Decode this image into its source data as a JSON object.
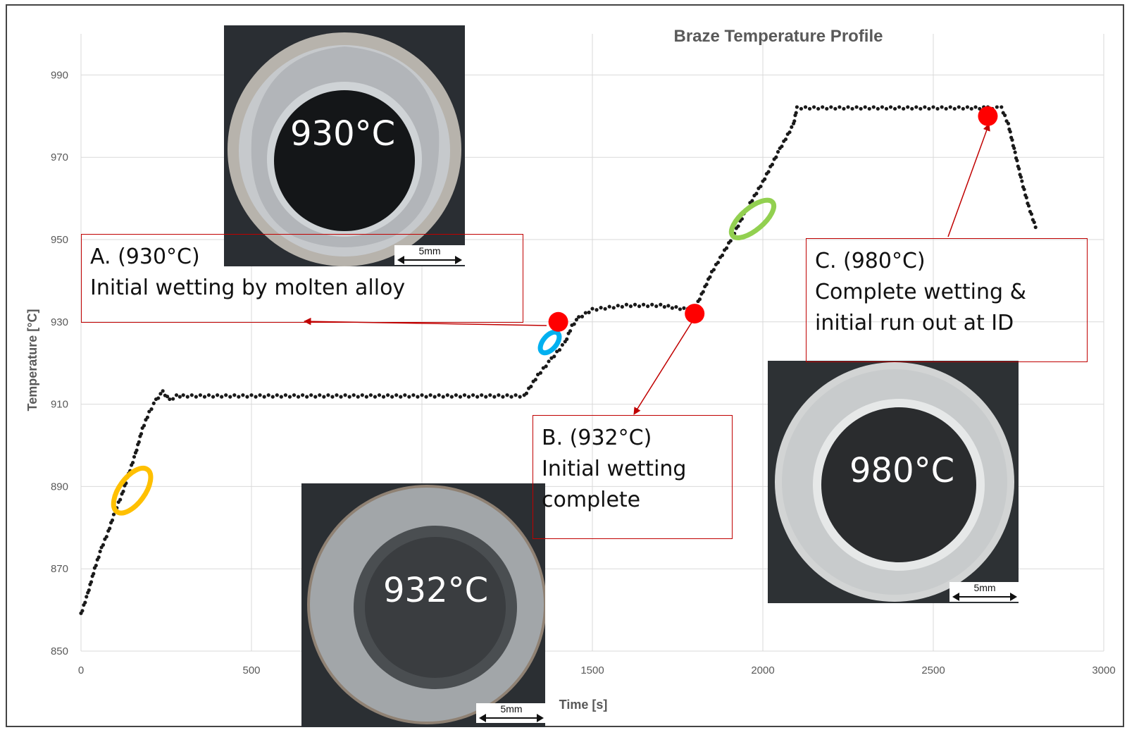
{
  "chart_data": {
    "type": "scatter",
    "title": "Braze Temperature Profile",
    "xlabel": "Time [s]",
    "ylabel": "Temperature [°C]",
    "xlim": [
      0,
      3000
    ],
    "ylim": [
      850,
      1000
    ],
    "x_ticks": [
      "0",
      "500",
      "1000",
      "1500",
      "2000",
      "2500",
      "3000"
    ],
    "y_ticks": [
      "850",
      "870",
      "890",
      "910",
      "930",
      "950",
      "970",
      "990"
    ],
    "grid": true,
    "series": [
      {
        "color": "#1a1a1a",
        "x": [
          0,
          20,
          40,
          60,
          80,
          100,
          120,
          140,
          160,
          180,
          200,
          220,
          240,
          260,
          280,
          300,
          400,
          600,
          800,
          1000,
          1200,
          1300,
          1340,
          1380,
          1420,
          1440,
          1460,
          1500,
          1600,
          1700,
          1780,
          1800,
          1850,
          1900,
          1950,
          2000,
          2050,
          2090,
          2100,
          2200,
          2300,
          2400,
          2500,
          2600,
          2660,
          2700,
          2720,
          2740,
          2760,
          2780,
          2800
        ],
        "y": [
          859,
          864,
          870,
          875,
          879,
          884,
          888,
          893,
          898,
          904,
          908,
          911,
          913,
          911,
          912,
          912,
          912,
          912,
          912,
          912,
          912,
          912,
          917,
          921,
          925,
          929,
          931,
          933,
          934,
          934,
          933,
          933,
          942,
          949,
          957,
          964,
          972,
          978,
          982,
          982,
          982,
          982,
          982,
          982,
          982,
          982,
          978,
          971,
          964,
          958,
          953
        ]
      }
    ],
    "highlight_markers": [
      {
        "x": 1400,
        "y": 930,
        "color": "#ff0000"
      },
      {
        "x": 1800,
        "y": 932,
        "color": "#ff0000"
      },
      {
        "x": 2660,
        "y": 980,
        "color": "#ff0000"
      }
    ],
    "regions": [
      {
        "name": "initial-heating",
        "color": "#ffc000",
        "cx": 150,
        "cy": 889,
        "rx": 70,
        "ry": 37,
        "angle_deg": 36
      },
      {
        "name": "wetting-a",
        "color": "#00b0f0",
        "cx": 1375,
        "cy": 925,
        "rx": 40,
        "ry": 16,
        "angle_deg": 40
      },
      {
        "name": "wetting-b",
        "color": "#92d050",
        "cx": 1970,
        "cy": 955,
        "rx": 60,
        "ry": 37,
        "angle_deg": 50
      }
    ]
  },
  "callouts": {
    "a": {
      "line1": "A. (930°C)",
      "line2": "Initial wetting by molten alloy",
      "color": "#c00000"
    },
    "b": {
      "line1": "B. (932°C)",
      "line2": "Initial wetting",
      "line3": "complete",
      "color": "#c00000"
    },
    "c": {
      "line1": "C. (980°C)",
      "line2": "Complete wetting &",
      "line3": "initial run out at ID",
      "color": "#c00000"
    }
  },
  "photos": {
    "p930": {
      "label": "930°C",
      "scale": "5mm"
    },
    "p932": {
      "label": "932°C",
      "scale": "5mm"
    },
    "p980": {
      "label": "980°C",
      "scale": "5mm"
    }
  }
}
